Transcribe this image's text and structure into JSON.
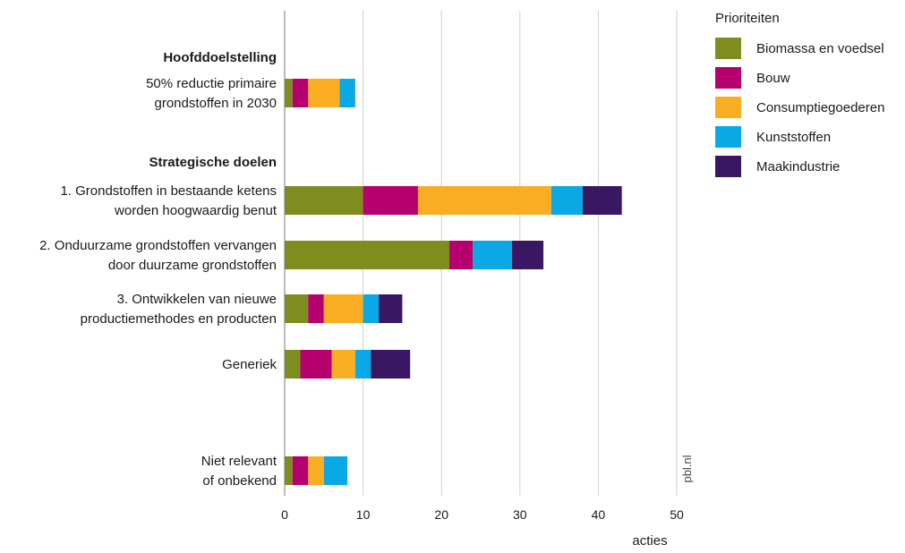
{
  "chart_data": {
    "type": "bar",
    "orientation": "horizontal",
    "stacked": true,
    "xlabel": "acties",
    "xlim": [
      0,
      50
    ],
    "x_ticks": [
      0,
      10,
      20,
      30,
      40,
      50
    ],
    "grid": true,
    "legend_title": "Prioriteiten",
    "legend_position": "top-right",
    "source": "pbl.nl",
    "groups": [
      {
        "heading": "Hoofddoelstelling",
        "categories": [
          "50% reductie primaire grondstoffen in 2030"
        ]
      },
      {
        "heading": "Strategische doelen",
        "categories": [
          "1. Grondstoffen in bestaande ketens worden hoogwaardig benut",
          "2. Onduurzame grondstoffen vervangen door duurzame grondstoffen",
          "3. Ontwikkelen van nieuwe productiemethodes en producten",
          "Generiek"
        ]
      },
      {
        "heading": "",
        "categories": [
          "Niet relevant of onbekend"
        ]
      }
    ],
    "categories": [
      [
        "50% reductie primaire",
        "grondstoffen in 2030"
      ],
      [
        "1. Grondstoffen in bestaande ketens",
        "worden hoogwaardig benut"
      ],
      [
        "2. Onduurzame grondstoffen vervangen",
        "door duurzame grondstoffen"
      ],
      [
        "3. Ontwikkelen van nieuwe",
        "productiemethodes en producten"
      ],
      [
        "Generiek"
      ],
      [
        "Niet relevant",
        "of onbekend"
      ]
    ],
    "series": [
      {
        "name": "Biomassa en voedsel",
        "color": "#7f8c1e",
        "values": [
          1,
          10,
          21,
          3,
          2,
          1
        ]
      },
      {
        "name": "Bouw",
        "color": "#b5006d",
        "values": [
          2,
          7,
          3,
          2,
          4,
          2
        ]
      },
      {
        "name": "Consumptiegoederen",
        "color": "#f9ad22",
        "values": [
          4,
          17,
          0,
          5,
          3,
          2
        ]
      },
      {
        "name": "Kunststoffen",
        "color": "#0aa8e4",
        "values": [
          2,
          4,
          5,
          2,
          2,
          3
        ]
      },
      {
        "name": "Maakindustrie",
        "color": "#3a1762",
        "values": [
          0,
          5,
          4,
          3,
          5,
          0
        ]
      }
    ]
  }
}
